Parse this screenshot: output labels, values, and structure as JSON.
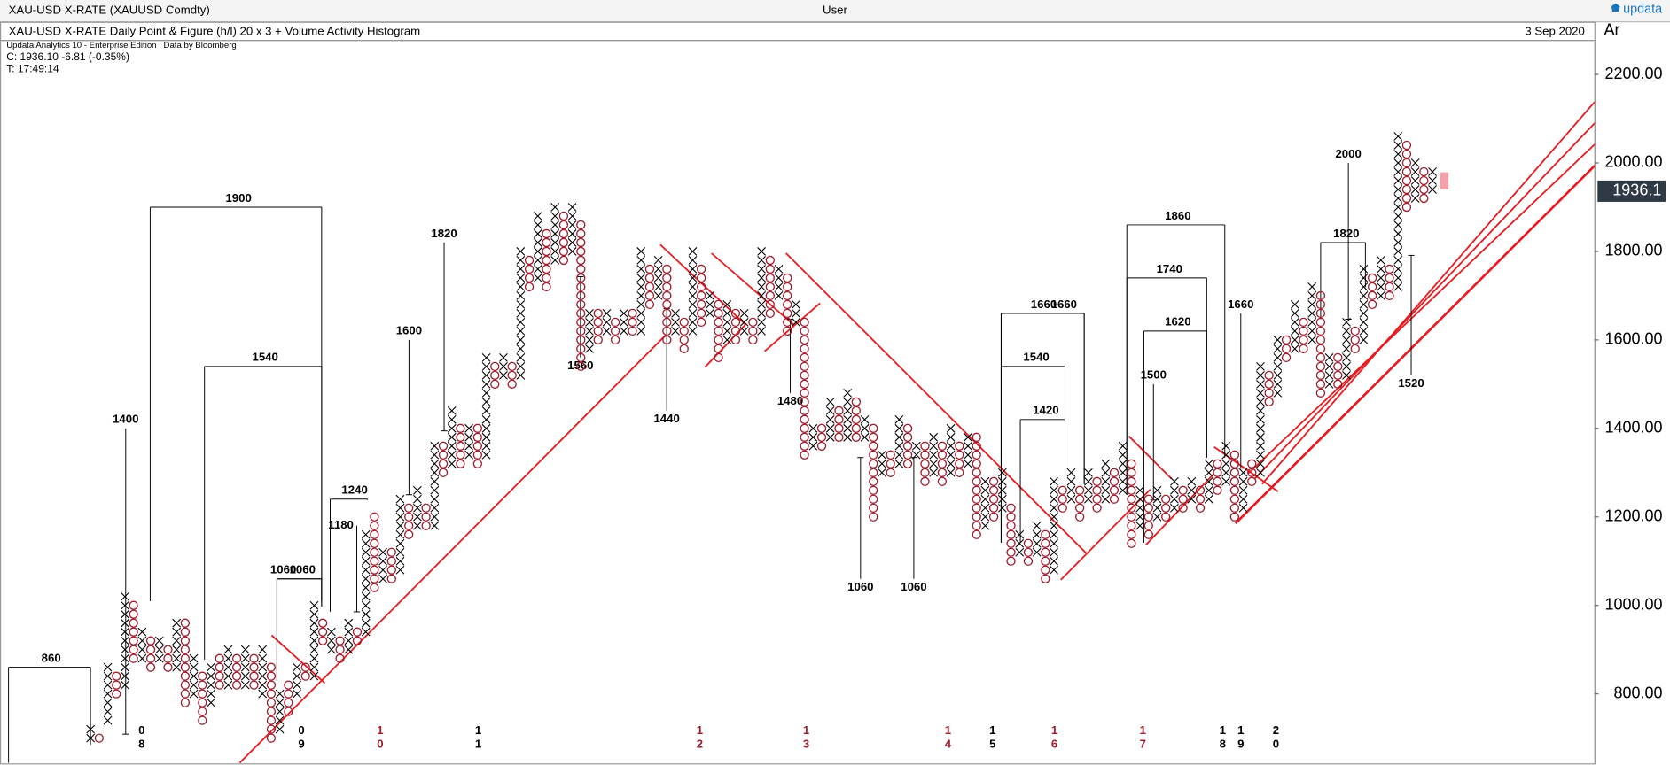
{
  "header": {
    "instrument": "XAU-USD X-RATE (XAUUSD Comdty)",
    "user": "User",
    "logo": "updata",
    "chart_name": "XAU-USD X-RATE Daily Point & Figure (h/l) 20 x 3 + Volume Activity Histogram",
    "date": "3 Sep 2020",
    "axis_tag": "Ar",
    "info": [
      "Updata Analytics 10 - Enterprise Edition : Data by Bloomberg",
      "C: 1936.10  -6.81 (-0.35%)",
      "T: 17:49:14"
    ]
  },
  "chart_data": {
    "type": "pnf",
    "box_size": 20,
    "x_color": "#000000",
    "o_color": "#a01c2c",
    "trend_color": "#e8191e",
    "ylim": [
      644,
      2272
    ],
    "yticks": [
      {
        "value": 800,
        "label": "800.00"
      },
      {
        "value": 1000,
        "label": "1000.00"
      },
      {
        "value": 1200,
        "label": "1200.00"
      },
      {
        "value": 1400,
        "label": "1400.00"
      },
      {
        "value": 1600,
        "label": "1600.00"
      },
      {
        "value": 1800,
        "label": "1800.00"
      },
      {
        "value": 2000,
        "label": "2000.00"
      },
      {
        "value": 2200,
        "label": "2200.00"
      }
    ],
    "last_price": 1936.1,
    "columns": [
      [
        "X",
        700,
        720
      ],
      [
        "O",
        700,
        700
      ],
      [
        "X",
        740,
        860
      ],
      [
        "O",
        800,
        840
      ],
      [
        "X",
        820,
        1020
      ],
      [
        "O",
        880,
        1000
      ],
      [
        "X",
        880,
        940
      ],
      [
        "O",
        860,
        920
      ],
      [
        "X",
        880,
        920
      ],
      [
        "O",
        860,
        900
      ],
      [
        "X",
        860,
        960
      ],
      [
        "O",
        780,
        960
      ],
      [
        "X",
        800,
        880
      ],
      [
        "O",
        740,
        840
      ],
      [
        "X",
        780,
        860
      ],
      [
        "O",
        820,
        880
      ],
      [
        "X",
        820,
        900
      ],
      [
        "O",
        820,
        880
      ],
      [
        "X",
        820,
        900
      ],
      [
        "O",
        820,
        880
      ],
      [
        "X",
        800,
        900
      ],
      [
        "O",
        700,
        860
      ],
      [
        "X",
        720,
        800
      ],
      [
        "O",
        760,
        820
      ],
      [
        "X",
        800,
        860
      ],
      [
        "O",
        840,
        860
      ],
      [
        "X",
        840,
        1000
      ],
      [
        "O",
        920,
        960
      ],
      [
        "X",
        900,
        940
      ],
      [
        "O",
        880,
        920
      ],
      [
        "X",
        900,
        960
      ],
      [
        "O",
        920,
        940
      ],
      [
        "X",
        940,
        1160
      ],
      [
        "O",
        1040,
        1200
      ],
      [
        "X",
        1060,
        1120
      ],
      [
        "O",
        1060,
        1120
      ],
      [
        "X",
        1080,
        1240
      ],
      [
        "O",
        1160,
        1220
      ],
      [
        "X",
        1180,
        1260
      ],
      [
        "O",
        1180,
        1220
      ],
      [
        "X",
        1180,
        1360
      ],
      [
        "O",
        1300,
        1360
      ],
      [
        "X",
        1320,
        1440
      ],
      [
        "O",
        1320,
        1400
      ],
      [
        "X",
        1340,
        1400
      ],
      [
        "O",
        1320,
        1400
      ],
      [
        "X",
        1340,
        1560
      ],
      [
        "O",
        1500,
        1540
      ],
      [
        "X",
        1520,
        1560
      ],
      [
        "O",
        1500,
        1540
      ],
      [
        "X",
        1520,
        1800
      ],
      [
        "O",
        1720,
        1780
      ],
      [
        "X",
        1740,
        1880
      ],
      [
        "O",
        1720,
        1840
      ],
      [
        "X",
        1780,
        1900
      ],
      [
        "O",
        1780,
        1880
      ],
      [
        "X",
        1800,
        1900
      ],
      [
        "O",
        1540,
        1860
      ],
      [
        "X",
        1580,
        1660
      ],
      [
        "O",
        1600,
        1660
      ],
      [
        "X",
        1620,
        1660
      ],
      [
        "O",
        1600,
        1640
      ],
      [
        "X",
        1620,
        1660
      ],
      [
        "O",
        1620,
        1660
      ],
      [
        "X",
        1620,
        1800
      ],
      [
        "O",
        1680,
        1760
      ],
      [
        "X",
        1700,
        1780
      ],
      [
        "O",
        1600,
        1760
      ],
      [
        "X",
        1620,
        1660
      ],
      [
        "O",
        1580,
        1640
      ],
      [
        "X",
        1620,
        1800
      ],
      [
        "O",
        1640,
        1760
      ],
      [
        "X",
        1660,
        1700
      ],
      [
        "O",
        1560,
        1680
      ],
      [
        "X",
        1600,
        1680
      ],
      [
        "O",
        1600,
        1660
      ],
      [
        "X",
        1620,
        1660
      ],
      [
        "O",
        1600,
        1640
      ],
      [
        "X",
        1620,
        1800
      ],
      [
        "O",
        1660,
        1780
      ],
      [
        "X",
        1700,
        1760
      ],
      [
        "O",
        1620,
        1740
      ],
      [
        "X",
        1640,
        1680
      ],
      [
        "O",
        1340,
        1640
      ],
      [
        "X",
        1360,
        1400
      ],
      [
        "O",
        1360,
        1400
      ],
      [
        "X",
        1380,
        1460
      ],
      [
        "O",
        1380,
        1440
      ],
      [
        "X",
        1380,
        1480
      ],
      [
        "O",
        1380,
        1460
      ],
      [
        "X",
        1380,
        1420
      ],
      [
        "O",
        1200,
        1400
      ],
      [
        "X",
        1300,
        1340
      ],
      [
        "O",
        1300,
        1340
      ],
      [
        "X",
        1320,
        1420
      ],
      [
        "O",
        1320,
        1400
      ],
      [
        "X",
        1340,
        1360
      ],
      [
        "O",
        1280,
        1360
      ],
      [
        "X",
        1300,
        1380
      ],
      [
        "O",
        1280,
        1360
      ],
      [
        "X",
        1300,
        1400
      ],
      [
        "O",
        1300,
        1360
      ],
      [
        "X",
        1320,
        1380
      ],
      [
        "O",
        1160,
        1380
      ],
      [
        "X",
        1180,
        1280
      ],
      [
        "O",
        1200,
        1280
      ],
      [
        "X",
        1220,
        1300
      ],
      [
        "O",
        1100,
        1220
      ],
      [
        "X",
        1120,
        1160
      ],
      [
        "O",
        1100,
        1140
      ],
      [
        "X",
        1120,
        1180
      ],
      [
        "O",
        1060,
        1160
      ],
      [
        "X",
        1080,
        1280
      ],
      [
        "O",
        1220,
        1260
      ],
      [
        "X",
        1240,
        1300
      ],
      [
        "O",
        1200,
        1260
      ],
      [
        "X",
        1240,
        1300
      ],
      [
        "O",
        1220,
        1280
      ],
      [
        "X",
        1240,
        1320
      ],
      [
        "O",
        1240,
        1300
      ],
      [
        "X",
        1260,
        1360
      ],
      [
        "O",
        1140,
        1320
      ],
      [
        "X",
        1180,
        1260
      ],
      [
        "O",
        1160,
        1240
      ],
      [
        "X",
        1200,
        1260
      ],
      [
        "O",
        1200,
        1240
      ],
      [
        "X",
        1220,
        1280
      ],
      [
        "O",
        1220,
        1260
      ],
      [
        "X",
        1240,
        1280
      ],
      [
        "O",
        1220,
        1260
      ],
      [
        "X",
        1240,
        1320
      ],
      [
        "O",
        1260,
        1320
      ],
      [
        "X",
        1280,
        1360
      ],
      [
        "O",
        1200,
        1340
      ],
      [
        "X",
        1220,
        1300
      ],
      [
        "O",
        1280,
        1320
      ],
      [
        "X",
        1300,
        1540
      ],
      [
        "O",
        1460,
        1520
      ],
      [
        "X",
        1480,
        1600
      ],
      [
        "O",
        1560,
        1600
      ],
      [
        "X",
        1580,
        1680
      ],
      [
        "O",
        1580,
        1640
      ],
      [
        "X",
        1600,
        1720
      ],
      [
        "O",
        1480,
        1700
      ],
      [
        "X",
        1500,
        1560
      ],
      [
        "O",
        1500,
        1560
      ],
      [
        "X",
        1520,
        1640
      ],
      [
        "O",
        1580,
        1620
      ],
      [
        "X",
        1600,
        1760
      ],
      [
        "O",
        1680,
        1740
      ],
      [
        "X",
        1700,
        1780
      ],
      [
        "O",
        1700,
        1760
      ],
      [
        "X",
        1720,
        2060
      ],
      [
        "O",
        1900,
        2040
      ],
      [
        "X",
        1920,
        2000
      ],
      [
        "O",
        1920,
        1980
      ],
      [
        "X",
        1940,
        1980
      ]
    ],
    "targets": [
      860,
      1400,
      1900,
      1540,
      1600,
      1820,
      1060,
      1060,
      1240,
      1180,
      1560,
      1440,
      1480,
      1060,
      1060,
      1660,
      1660,
      1540,
      1420,
      1860,
      1740,
      1620,
      1500,
      1660,
      2000,
      1820,
      1520
    ],
    "years": [
      {
        "digits": [
          "0",
          "8"
        ],
        "color": "#000000"
      },
      {
        "digits": [
          "0",
          "9"
        ],
        "color": "#000000"
      },
      {
        "digits": [
          "1",
          "0"
        ],
        "color": "#a01c2c"
      },
      {
        "digits": [
          "1",
          "1"
        ],
        "color": "#000000"
      },
      {
        "digits": [
          "1",
          "2"
        ],
        "color": "#a01c2c"
      },
      {
        "digits": [
          "1",
          "3"
        ],
        "color": "#a01c2c"
      },
      {
        "digits": [
          "1",
          "4"
        ],
        "color": "#a01c2c"
      },
      {
        "digits": [
          "1",
          "5"
        ],
        "color": "#000000"
      },
      {
        "digits": [
          "1",
          "6"
        ],
        "color": "#a01c2c"
      },
      {
        "digits": [
          "1",
          "7"
        ],
        "color": "#a01c2c"
      },
      {
        "digits": [
          "1",
          "8"
        ],
        "color": "#000000"
      },
      {
        "digits": [
          "1",
          "9"
        ],
        "color": "#000000"
      },
      {
        "digits": [
          "2",
          "0"
        ],
        "color": "#000000"
      }
    ]
  }
}
